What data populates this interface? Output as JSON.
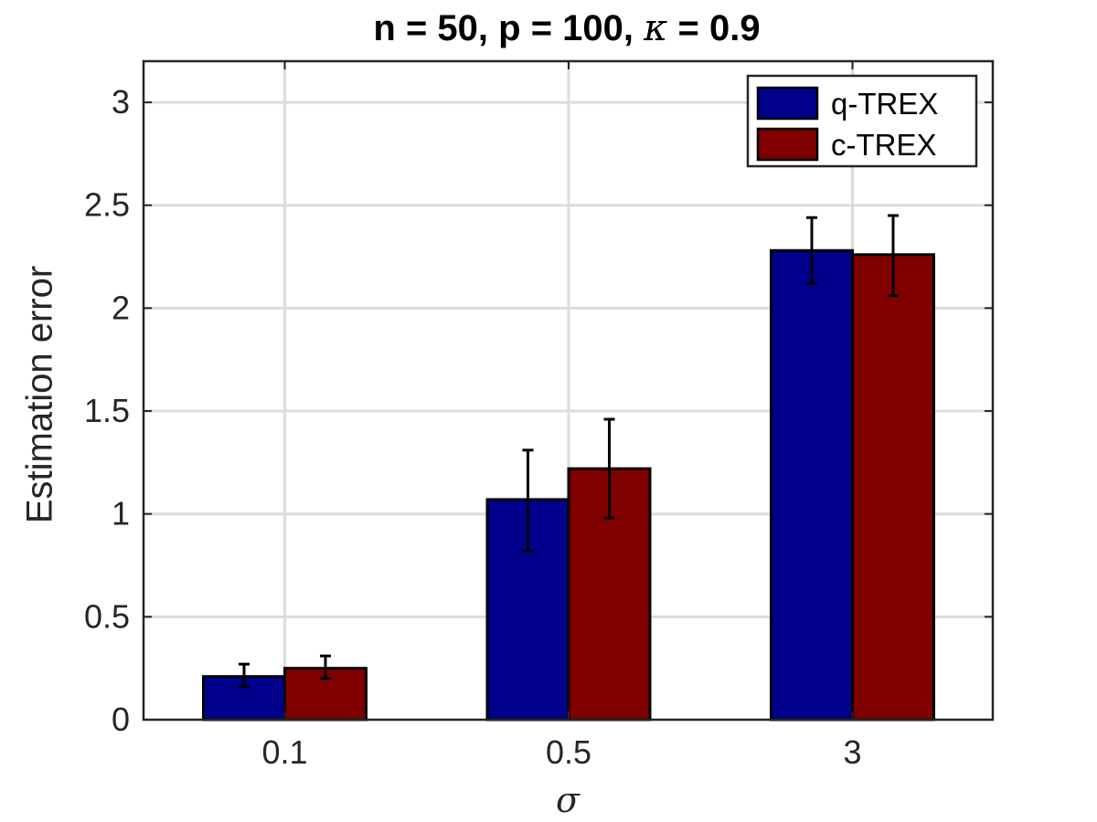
{
  "title": {
    "prefix": "n = 50, p = 100, ",
    "symbol": "κ",
    "suffix": " = 0.9"
  },
  "chart_data": {
    "type": "bar",
    "xlabel": "σ",
    "ylabel": "Estimation error",
    "categories": [
      "0.1",
      "0.5",
      "3"
    ],
    "ylim": [
      0,
      3.2
    ],
    "yticks": [
      0,
      0.5,
      1,
      1.5,
      2,
      2.5,
      3
    ],
    "ytick_labels": [
      "0",
      "0.5",
      "1",
      "1.5",
      "2",
      "2.5",
      "3"
    ],
    "grid": true,
    "legend_position": "top-right",
    "series": [
      {
        "name": "q-TREX",
        "color": "#00008b",
        "values": [
          0.21,
          1.07,
          2.28
        ],
        "err_low": [
          0.16,
          0.82,
          2.12
        ],
        "err_high": [
          0.27,
          1.31,
          2.44
        ]
      },
      {
        "name": "c-TREX",
        "color": "#800000",
        "values": [
          0.25,
          1.22,
          2.26
        ],
        "err_low": [
          0.2,
          0.98,
          2.06
        ],
        "err_high": [
          0.31,
          1.46,
          2.45
        ]
      }
    ]
  }
}
